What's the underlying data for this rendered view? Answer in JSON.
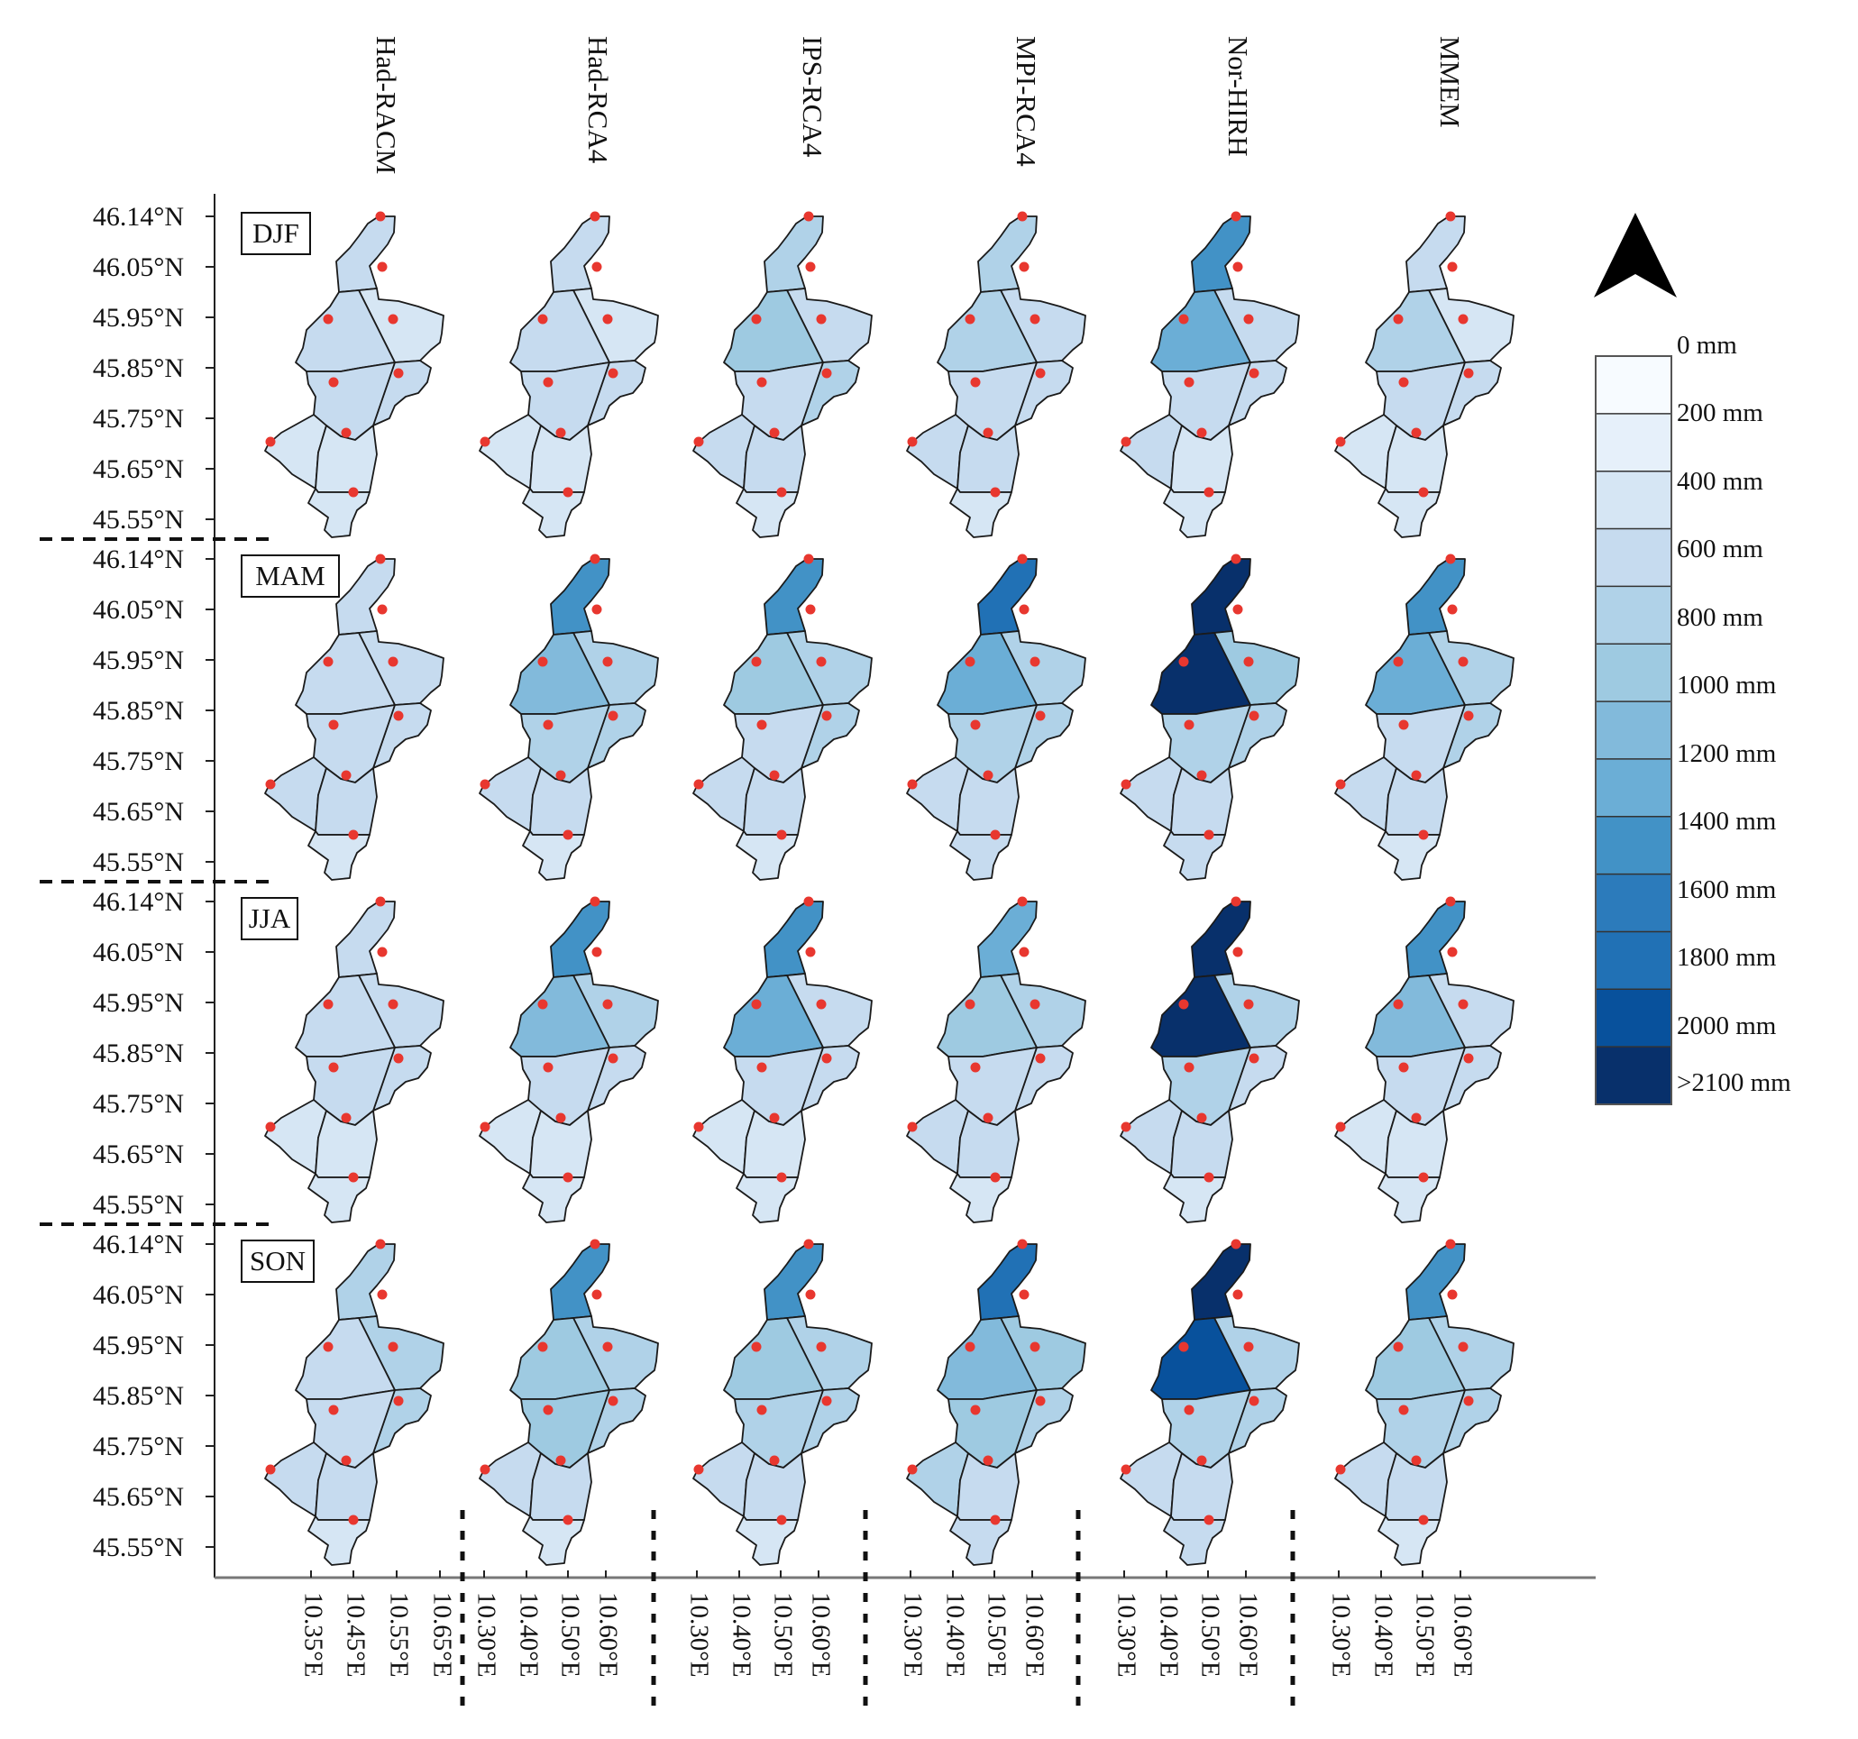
{
  "figure": {
    "models": [
      "Had-RACM",
      "Had-RCA4",
      "IPS-RCA4",
      "MPI-RCA4",
      "Nor-HIRH",
      "MMEM"
    ],
    "seasons": [
      "DJF",
      "MAM",
      "JJA",
      "SON"
    ],
    "lat_labels": [
      "46.14°N",
      "46.05°N",
      "45.95°N",
      "45.85°N",
      "45.75°N",
      "45.65°N",
      "45.55°N"
    ],
    "lon_labels": [
      [
        "10.35°E",
        "10.45°E",
        "10.55°E",
        "10.65°E"
      ],
      [
        "10.30°E",
        "10.40°E",
        "10.50°E",
        "10.60°E"
      ],
      [
        "10.30°E",
        "10.40°E",
        "10.50°E",
        "10.60°E"
      ],
      [
        "10.30°E",
        "10.40°E",
        "10.50°E",
        "10.60°E"
      ],
      [
        "10.30°E",
        "10.40°E",
        "10.50°E",
        "10.60°E"
      ],
      [
        "10.30°E",
        "10.40°E",
        "10.50°E",
        "10.60°E"
      ]
    ],
    "legend": {
      "labels": [
        "0 mm",
        "200 mm",
        "400 mm",
        "600 mm",
        "800 mm",
        "1000 mm",
        "1200 mm",
        "1400 mm",
        "1600 mm",
        "1800 mm",
        "2000 mm",
        ">2100 mm"
      ],
      "colors": [
        "#f7fbff",
        "#e6f0fa",
        "#d6e6f4",
        "#c6dbef",
        "#b0d2e8",
        "#9ecae1",
        "#82badb",
        "#6baed6",
        "#4292c6",
        "#2c7bbb",
        "#2171b5",
        "#08519c",
        "#08306b"
      ]
    },
    "north_arrow": "north-arrow-icon"
  },
  "chart_data": {
    "type": "heatmap",
    "title": "",
    "value_unit": "mm (precipitation, Voronoi polygon per station; values estimated from color scale)",
    "polygons": [
      "north",
      "northeast",
      "west",
      "east",
      "center",
      "southwest",
      "south",
      "southeast"
    ],
    "models": [
      "Had-RACM",
      "Had-RCA4",
      "IPS-RCA4",
      "MPI-RCA4",
      "Nor-HIRH",
      "MMEM"
    ],
    "seasons": [
      "DJF",
      "MAM",
      "JJA",
      "SON"
    ],
    "values": {
      "DJF": {
        "Had-RACM": [
          400,
          300,
          400,
          400,
          400,
          300,
          300,
          300
        ],
        "Had-RCA4": [
          500,
          300,
          500,
          400,
          400,
          300,
          300,
          200
        ],
        "IPS-RCA4": [
          600,
          400,
          800,
          700,
          500,
          400,
          400,
          300
        ],
        "MPI-RCA4": [
          600,
          400,
          600,
          500,
          500,
          400,
          400,
          300
        ],
        "Nor-HIRH": [
          1500,
          400,
          1300,
          500,
          500,
          400,
          300,
          300
        ],
        "MMEM": [
          500,
          300,
          700,
          500,
          500,
          300,
          300,
          300
        ]
      },
      "MAM": {
        "Had-RACM": [
          500,
          500,
          400,
          500,
          500,
          400,
          400,
          300
        ],
        "Had-RCA4": [
          1500,
          700,
          1100,
          600,
          600,
          400,
          400,
          300
        ],
        "IPS-RCA4": [
          1500,
          700,
          800,
          600,
          500,
          400,
          400,
          300
        ],
        "MPI-RCA4": [
          1800,
          700,
          1300,
          700,
          600,
          400,
          400,
          400
        ],
        "Nor-HIRH": [
          2200,
          900,
          2200,
          600,
          600,
          400,
          400,
          400
        ],
        "MMEM": [
          1500,
          600,
          1300,
          600,
          500,
          400,
          400,
          300
        ]
      },
      "JJA": {
        "Had-RACM": [
          500,
          400,
          400,
          400,
          400,
          300,
          300,
          300
        ],
        "Had-RCA4": [
          1400,
          600,
          1100,
          400,
          400,
          300,
          300,
          300
        ],
        "IPS-RCA4": [
          1500,
          500,
          1200,
          400,
          400,
          300,
          300,
          200
        ],
        "MPI-RCA4": [
          1200,
          700,
          900,
          500,
          500,
          400,
          400,
          300
        ],
        "Nor-HIRH": [
          2200,
          700,
          2200,
          500,
          600,
          400,
          400,
          300
        ],
        "MMEM": [
          1500,
          500,
          1100,
          400,
          500,
          300,
          300,
          300
        ]
      },
      "SON": {
        "Had-RACM": [
          600,
          600,
          500,
          600,
          500,
          400,
          400,
          300
        ],
        "Had-RCA4": [
          1500,
          600,
          900,
          600,
          800,
          400,
          400,
          300
        ],
        "IPS-RCA4": [
          1500,
          700,
          800,
          600,
          600,
          400,
          400,
          300
        ],
        "MPI-RCA4": [
          1800,
          800,
          1100,
          700,
          800,
          600,
          500,
          400
        ],
        "Nor-HIRH": [
          2200,
          700,
          2000,
          600,
          600,
          400,
          400,
          400
        ],
        "MMEM": [
          1500,
          600,
          900,
          600,
          600,
          400,
          400,
          300
        ]
      }
    }
  }
}
